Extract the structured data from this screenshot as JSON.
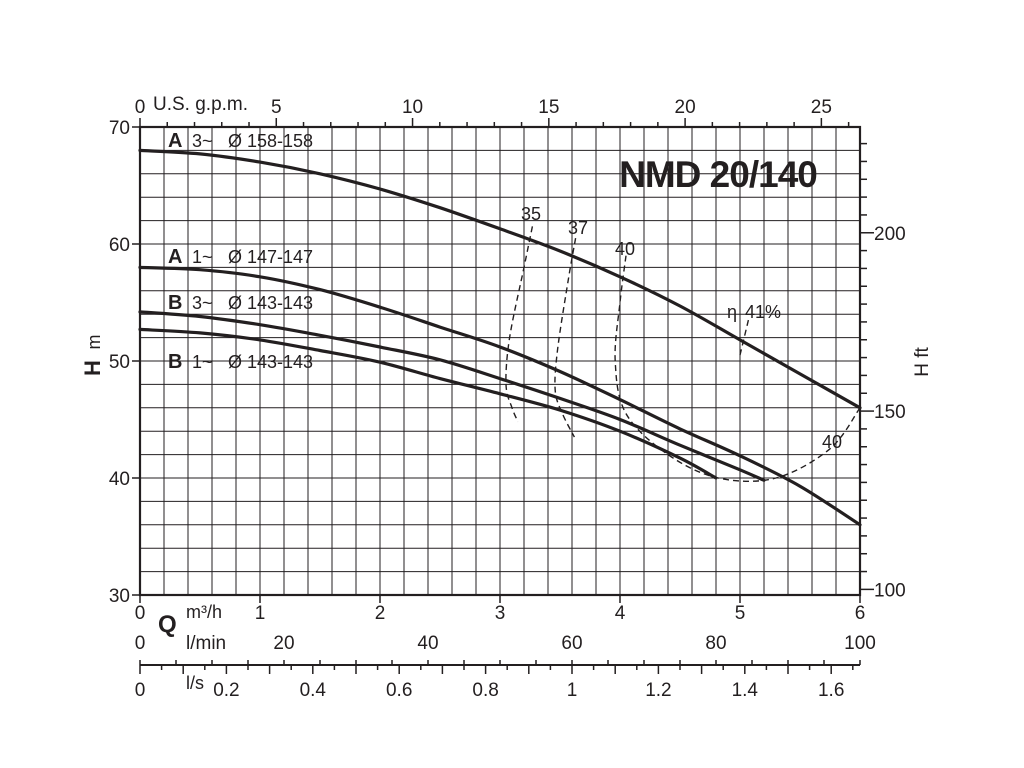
{
  "chart_data": {
    "type": "line",
    "title": "NMD 20/140",
    "y_left": {
      "label_main": "H",
      "label_unit": "m",
      "range": [
        30,
        70
      ],
      "ticks": [
        "30",
        "40",
        "50",
        "60",
        "70"
      ]
    },
    "y_right": {
      "label": "H ft",
      "ticks": [
        "100",
        "150",
        "200"
      ]
    },
    "x_top": {
      "label": "U.S. g.p.m.",
      "ticks": [
        "0",
        "5",
        "10",
        "15",
        "20",
        "25"
      ]
    },
    "x_bottom": {
      "flow_symbol": "Q",
      "m3h": {
        "label": "m³/h",
        "range": [
          0,
          6
        ],
        "ticks": [
          "0",
          "1",
          "2",
          "3",
          "4",
          "5",
          "6"
        ]
      },
      "lmin": {
        "label": "l/min",
        "ticks": [
          "0",
          "20",
          "40",
          "60",
          "80",
          "100"
        ]
      },
      "ls": {
        "label": "l/s",
        "ticks": [
          "0",
          "0.2",
          "0.4",
          "0.6",
          "0.8",
          "1",
          "1.2",
          "1.4",
          "1.6"
        ]
      }
    },
    "grid": true,
    "series": [
      {
        "name": "A 3~ Ø 158-158",
        "tag": "A",
        "phase": "3~",
        "diameter": "Ø 158-158",
        "x": [
          0,
          0.5,
          1,
          1.5,
          2,
          2.5,
          3,
          3.5,
          4,
          4.5,
          5,
          5.5,
          6
        ],
        "y": [
          68,
          67.7,
          67,
          66,
          64.7,
          63.1,
          61.3,
          59.4,
          57.2,
          54.7,
          51.8,
          48.9,
          46
        ]
      },
      {
        "name": "A 1~ Ø 147-147",
        "tag": "A",
        "phase": "1~",
        "diameter": "Ø 147-147",
        "x": [
          0,
          0.5,
          1,
          1.5,
          2,
          2.5,
          3,
          3.5,
          4,
          4.5,
          5,
          5.5,
          6
        ],
        "y": [
          58,
          57.8,
          57.2,
          56.1,
          54.6,
          52.9,
          51.2,
          49.1,
          46.7,
          44.2,
          41.9,
          39.3,
          36
        ]
      },
      {
        "name": "B 3~ Ø 143-143",
        "tag": "B",
        "phase": "3~",
        "diameter": "Ø 143-143",
        "x": [
          0,
          0.5,
          1,
          1.5,
          2,
          2.5,
          3,
          3.5,
          4,
          4.5,
          5,
          5.2
        ],
        "y": [
          54.2,
          53.8,
          53.1,
          52.2,
          51.2,
          50.1,
          48.5,
          46.8,
          45,
          42.8,
          40.7,
          39.8
        ]
      },
      {
        "name": "B 1~ Ø 143-143",
        "tag": "B",
        "phase": "1~",
        "diameter": "Ø 143-143",
        "x": [
          0,
          0.5,
          1,
          1.5,
          2,
          2.5,
          3,
          3.5,
          4,
          4.5,
          4.8
        ],
        "y": [
          52.7,
          52.4,
          51.8,
          50.9,
          49.9,
          48.5,
          47.2,
          45.8,
          44,
          41.7,
          40
        ]
      }
    ],
    "efficiency": {
      "symbol": "η",
      "curves": [
        {
          "label": "35",
          "x": [
            3.27,
            3.2,
            3.08,
            3.05,
            3.1,
            3.15
          ],
          "y": [
            61.5,
            58,
            52,
            48,
            46,
            44.8
          ]
        },
        {
          "label": "37",
          "x": [
            3.63,
            3.57,
            3.48,
            3.46,
            3.52,
            3.62
          ],
          "y": [
            60.5,
            57,
            51,
            47.5,
            45.5,
            43.5
          ]
        },
        {
          "label": "40",
          "x": [
            4.05,
            4.0,
            3.96,
            4.05,
            4.4,
            4.82,
            5.3,
            5.75,
            6.0
          ],
          "y": [
            59,
            55,
            50,
            45.5,
            42,
            40,
            40,
            42.5,
            46
          ]
        },
        {
          "label": "41%",
          "x": [
            5.0,
            5.07
          ],
          "y": [
            50.5,
            53.5
          ]
        }
      ],
      "right_label": "40"
    }
  }
}
